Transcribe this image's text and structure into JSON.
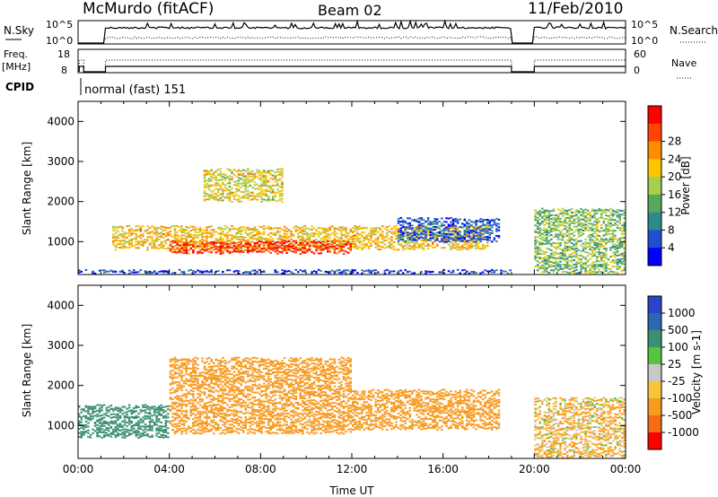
{
  "header": {
    "station": "McMurdo (fitACF)",
    "beam": "Beam 02",
    "date": "11/Feb/2010"
  },
  "top_panels": {
    "nsky_label": "N.Sky",
    "nsky_ticks": [
      "10^5",
      "10^0"
    ],
    "nsearch_label": "N.Search",
    "nsearch_ticks": [
      "10^5",
      "10^0"
    ],
    "freq_label_line1": "Freq.",
    "freq_label_line2": "[MHz]",
    "freq_ticks": [
      "18",
      "8"
    ],
    "nave_label": "Nave",
    "nave_ticks": [
      "60",
      "0"
    ],
    "cpid_label": "CPID",
    "cpid_text": "normal (fast) 151"
  },
  "colors": {
    "power_scale": [
      "#0000ff",
      "#1e4fd0",
      "#2e8a8a",
      "#56a85a",
      "#a6d04b",
      "#ffc400",
      "#ff8c00",
      "#ff4500",
      "#ff0000"
    ],
    "velocity_scale": [
      "#2b43c9",
      "#2f66b4",
      "#3b8f72",
      "#55c43e",
      "#c8c8c8",
      "#f7c53c",
      "#f79a1f",
      "#f56c12",
      "#ff0000"
    ]
  },
  "chart_data": [
    {
      "type": "heatmap",
      "name": "power",
      "ylabel": "Slant Range [km]",
      "xlim": [
        0,
        24
      ],
      "ylim": [
        180,
        4500
      ],
      "yticks": [
        1000,
        2000,
        3000,
        4000
      ],
      "xticks": [
        "00:00",
        "04:00",
        "08:00",
        "12:00",
        "16:00",
        "20:00",
        "00:00"
      ],
      "colorbar": {
        "label": "Power [dB]",
        "range": [
          0,
          32
        ],
        "ticks": [
          "4",
          "8",
          "12",
          "16",
          "20",
          "24",
          "28"
        ]
      },
      "data_gap_hours": [
        19.0,
        20.0
      ],
      "features": [
        {
          "t_start": 0.0,
          "t_end": 19.0,
          "range_km": [
            200,
            300
          ],
          "power_db": 4
        },
        {
          "t_start": 1.5,
          "t_end": 18.0,
          "range_km": [
            800,
            1400
          ],
          "power_db": 20
        },
        {
          "t_start": 4.0,
          "t_end": 12.0,
          "range_km": [
            700,
            1000
          ],
          "power_db": 28
        },
        {
          "t_start": 5.5,
          "t_end": 9.0,
          "range_km": [
            2000,
            2800
          ],
          "power_db": 18
        },
        {
          "t_start": 14.0,
          "t_end": 18.5,
          "range_km": [
            1000,
            1600
          ],
          "power_db": 6
        },
        {
          "t_start": 20.0,
          "t_end": 24.0,
          "range_km": [
            200,
            1800
          ],
          "power_db": 14
        }
      ]
    },
    {
      "type": "heatmap",
      "name": "velocity",
      "ylabel": "Slant Range [km]",
      "xlabel": "Time UT",
      "xlim": [
        0,
        24
      ],
      "ylim": [
        180,
        4500
      ],
      "yticks": [
        1000,
        2000,
        3000,
        4000
      ],
      "xticks": [
        "00:00",
        "04:00",
        "08:00",
        "12:00",
        "16:00",
        "20:00",
        "00:00"
      ],
      "colorbar": {
        "label": "Velocity [m s-1]",
        "ticks": [
          "1000",
          "500",
          "100",
          "25",
          "-25",
          "-100",
          "-500",
          "-1000"
        ]
      },
      "data_gap_hours": [
        19.0,
        20.0
      ],
      "features": [
        {
          "t_start": 0.0,
          "t_end": 4.0,
          "range_km": [
            700,
            1500
          ],
          "velocity": 300
        },
        {
          "t_start": 4.0,
          "t_end": 12.0,
          "range_km": [
            800,
            2700
          ],
          "velocity": -300
        },
        {
          "t_start": 12.0,
          "t_end": 18.5,
          "range_km": [
            900,
            1900
          ],
          "velocity": -300
        },
        {
          "t_start": 20.0,
          "t_end": 24.0,
          "range_km": [
            200,
            1700
          ],
          "velocity": -100
        }
      ]
    }
  ]
}
